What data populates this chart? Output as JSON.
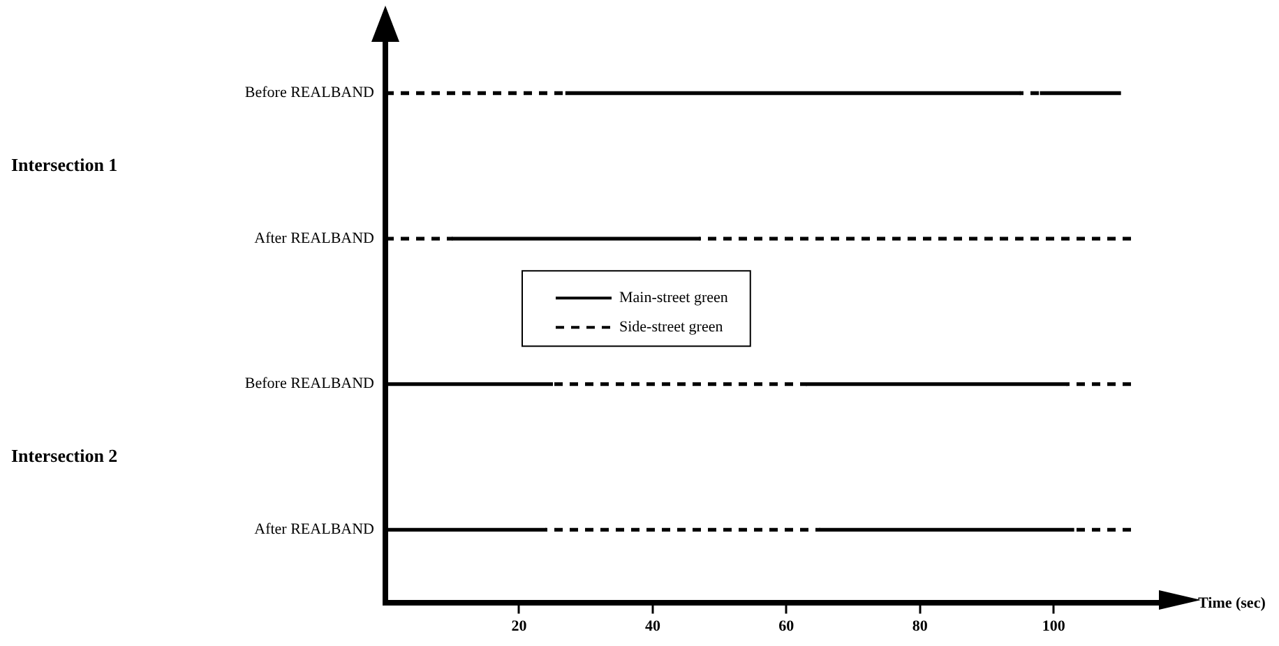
{
  "chart_data": {
    "type": "bar",
    "orientation": "horizontal",
    "xlabel": "Time (sec)",
    "categories": [
      "Before REALBAND",
      "After REALBAND",
      "Before REALBAND",
      "After REALBAND"
    ],
    "annotations": [
      "Intersection 1",
      "Intersection 2"
    ],
    "xlim": [
      0,
      117
    ],
    "xticks": [
      20,
      40,
      60,
      80,
      100
    ],
    "grid": false,
    "legend": "center",
    "series": [
      {
        "name": "Main-street green",
        "color": "#000000",
        "line_style": "solid",
        "base": [
          27,
          10,
          0,
          0
        ],
        "values": [
          68,
          37,
          25,
          24
        ]
      },
      {
        "color": "#000000",
        "line_style": "solid",
        "base": [
          98,
          null,
          63,
          65
        ],
        "values": [
          12,
          null,
          39,
          38
        ]
      },
      {
        "name": "Side-street green",
        "color": "#000000",
        "line_style": "dashed",
        "base": [
          0,
          0,
          25,
          24
        ],
        "values": [
          27,
          10,
          38,
          41
        ]
      },
      {
        "color": "#000000",
        "line_style": "dashed",
        "base": [
          95,
          47,
          102,
          103
        ],
        "values": [
          3,
          65,
          10,
          9
        ]
      }
    ]
  }
}
